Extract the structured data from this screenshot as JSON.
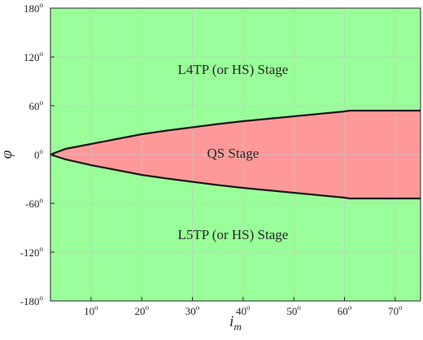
{
  "chart_data": {
    "type": "area",
    "xlabel": "i",
    "xlabel_sub": "m",
    "ylabel": "φ",
    "degree_symbol": "o",
    "xlim": [
      2,
      75
    ],
    "ylim": [
      -180,
      180
    ],
    "xticks": [
      {
        "value": 10,
        "label": "10"
      },
      {
        "value": 20,
        "label": "20"
      },
      {
        "value": 30,
        "label": "30"
      },
      {
        "value": 40,
        "label": "40"
      },
      {
        "value": 50,
        "label": "50"
      },
      {
        "value": 60,
        "label": "60"
      },
      {
        "value": 70,
        "label": "70"
      }
    ],
    "yticks": [
      {
        "value": 180,
        "label": "180"
      },
      {
        "value": 120,
        "label": "120"
      },
      {
        "value": 60,
        "label": "60"
      },
      {
        "value": 0,
        "label": "0"
      },
      {
        "value": -60,
        "label": "-60"
      },
      {
        "value": -120,
        "label": "-120"
      },
      {
        "value": -180,
        "label": "-180"
      }
    ],
    "grid": true,
    "colors": {
      "background_region": "#99ff99",
      "qs_region": "#ff9999",
      "boundary": "#1a1a1a",
      "grid": "#c8c8c8",
      "axis": "#262626"
    },
    "boundary": {
      "x": [
        2,
        5,
        10,
        15,
        20,
        25,
        30,
        35,
        40,
        45,
        50,
        55,
        60,
        61,
        65,
        70,
        75
      ],
      "upper": [
        0,
        7,
        13,
        19,
        25,
        29.5,
        33.5,
        37.5,
        41,
        44,
        47,
        50,
        53,
        54,
        54,
        54,
        54
      ],
      "lower": [
        0,
        -6,
        -13,
        -19,
        -25,
        -29.5,
        -33.5,
        -37.5,
        -41,
        -44,
        -47,
        -50,
        -53,
        -54,
        -54,
        -54,
        -54
      ]
    },
    "region_labels": [
      {
        "id": "l4tp",
        "text": "L4TP (or HS) Stage",
        "x": 38,
        "y": 105
      },
      {
        "id": "qs",
        "text": "QS Stage",
        "x": 38,
        "y": 2
      },
      {
        "id": "l5tp",
        "text": "L5TP (or HS) Stage",
        "x": 38,
        "y": -98
      }
    ]
  }
}
